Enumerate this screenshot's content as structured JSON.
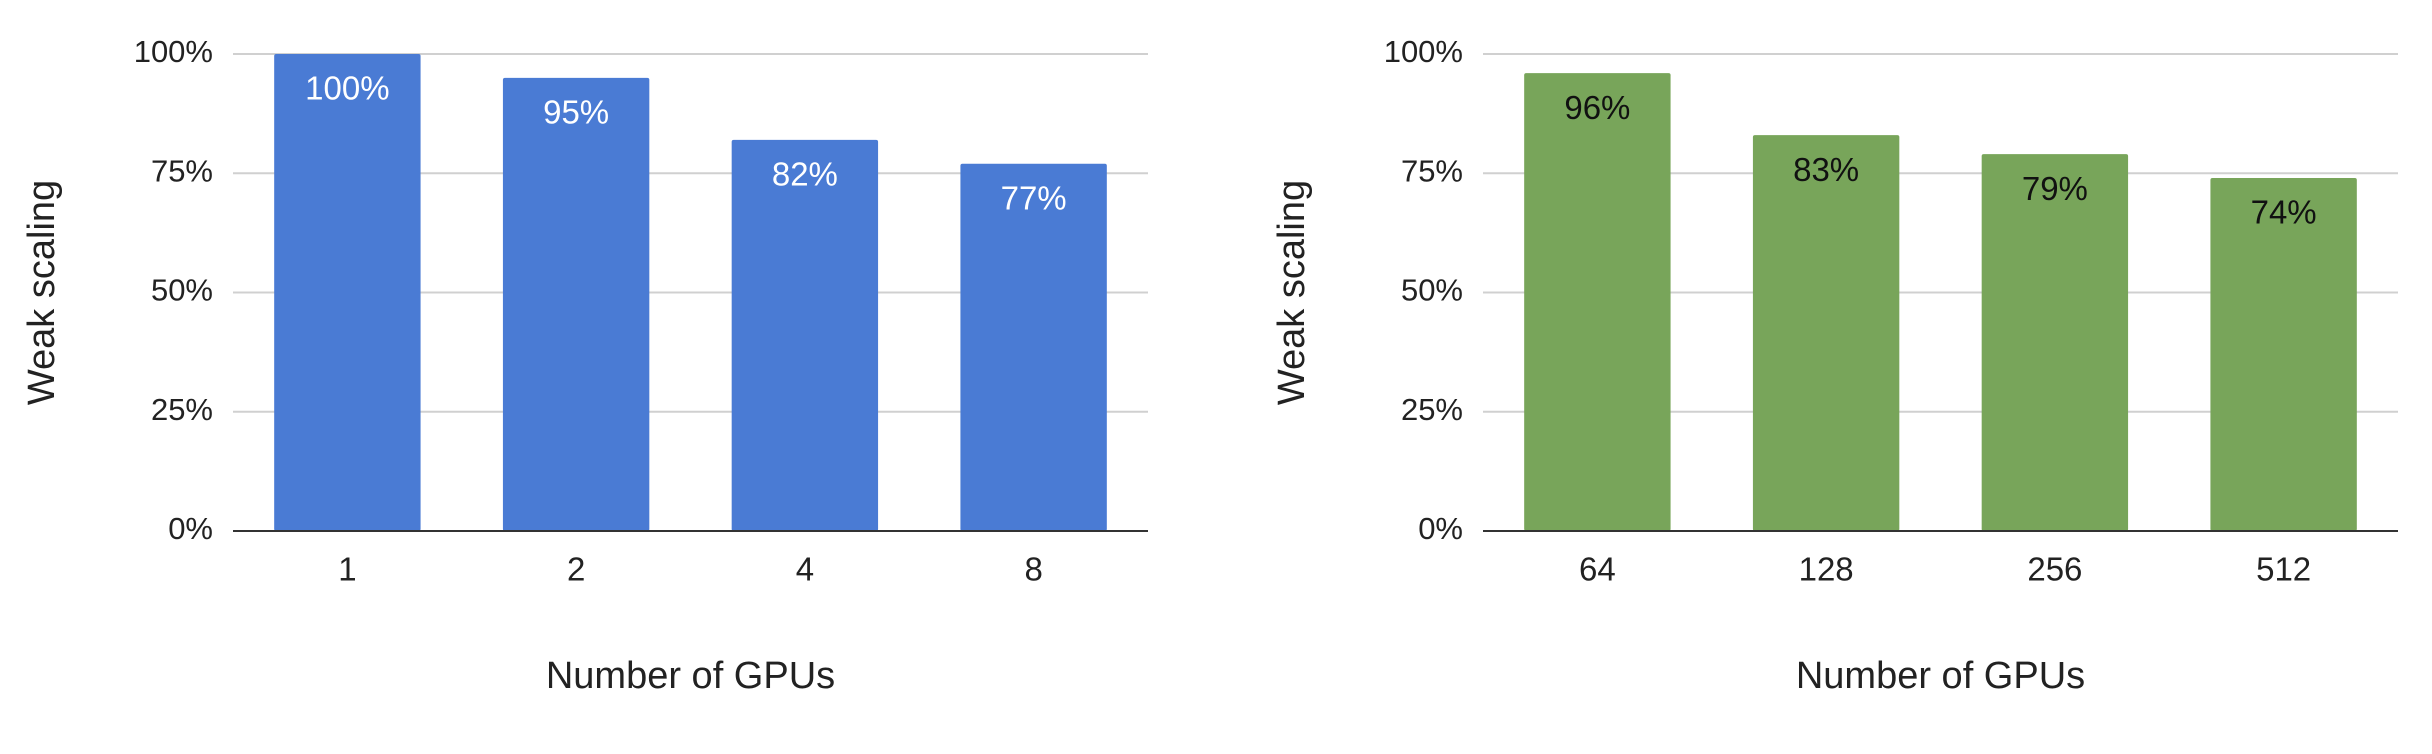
{
  "chart_data": [
    {
      "type": "bar",
      "categories": [
        "1",
        "2",
        "4",
        "8"
      ],
      "values": [
        100,
        95,
        82,
        77
      ],
      "data_labels": [
        "100%",
        "95%",
        "82%",
        "77%"
      ],
      "ylabel": "Weak scaling",
      "xlabel": "Number of GPUs",
      "ylim": [
        0,
        100
      ],
      "yticks": [
        "0%",
        "25%",
        "50%",
        "75%",
        "100%"
      ],
      "grid": true,
      "legend": "none",
      "bar_color": "#4a7bd4",
      "label_color": "#ffffff"
    },
    {
      "type": "bar",
      "categories": [
        "64",
        "128",
        "256",
        "512"
      ],
      "values": [
        96,
        83,
        79,
        74
      ],
      "data_labels": [
        "96%",
        "83%",
        "79%",
        "74%"
      ],
      "ylabel": "Weak scaling",
      "xlabel": "Number of GPUs",
      "ylim": [
        0,
        100
      ],
      "yticks": [
        "0%",
        "25%",
        "50%",
        "75%",
        "100%"
      ],
      "grid": true,
      "legend": "none",
      "bar_color": "#78a55a",
      "label_color": "#111111"
    }
  ]
}
